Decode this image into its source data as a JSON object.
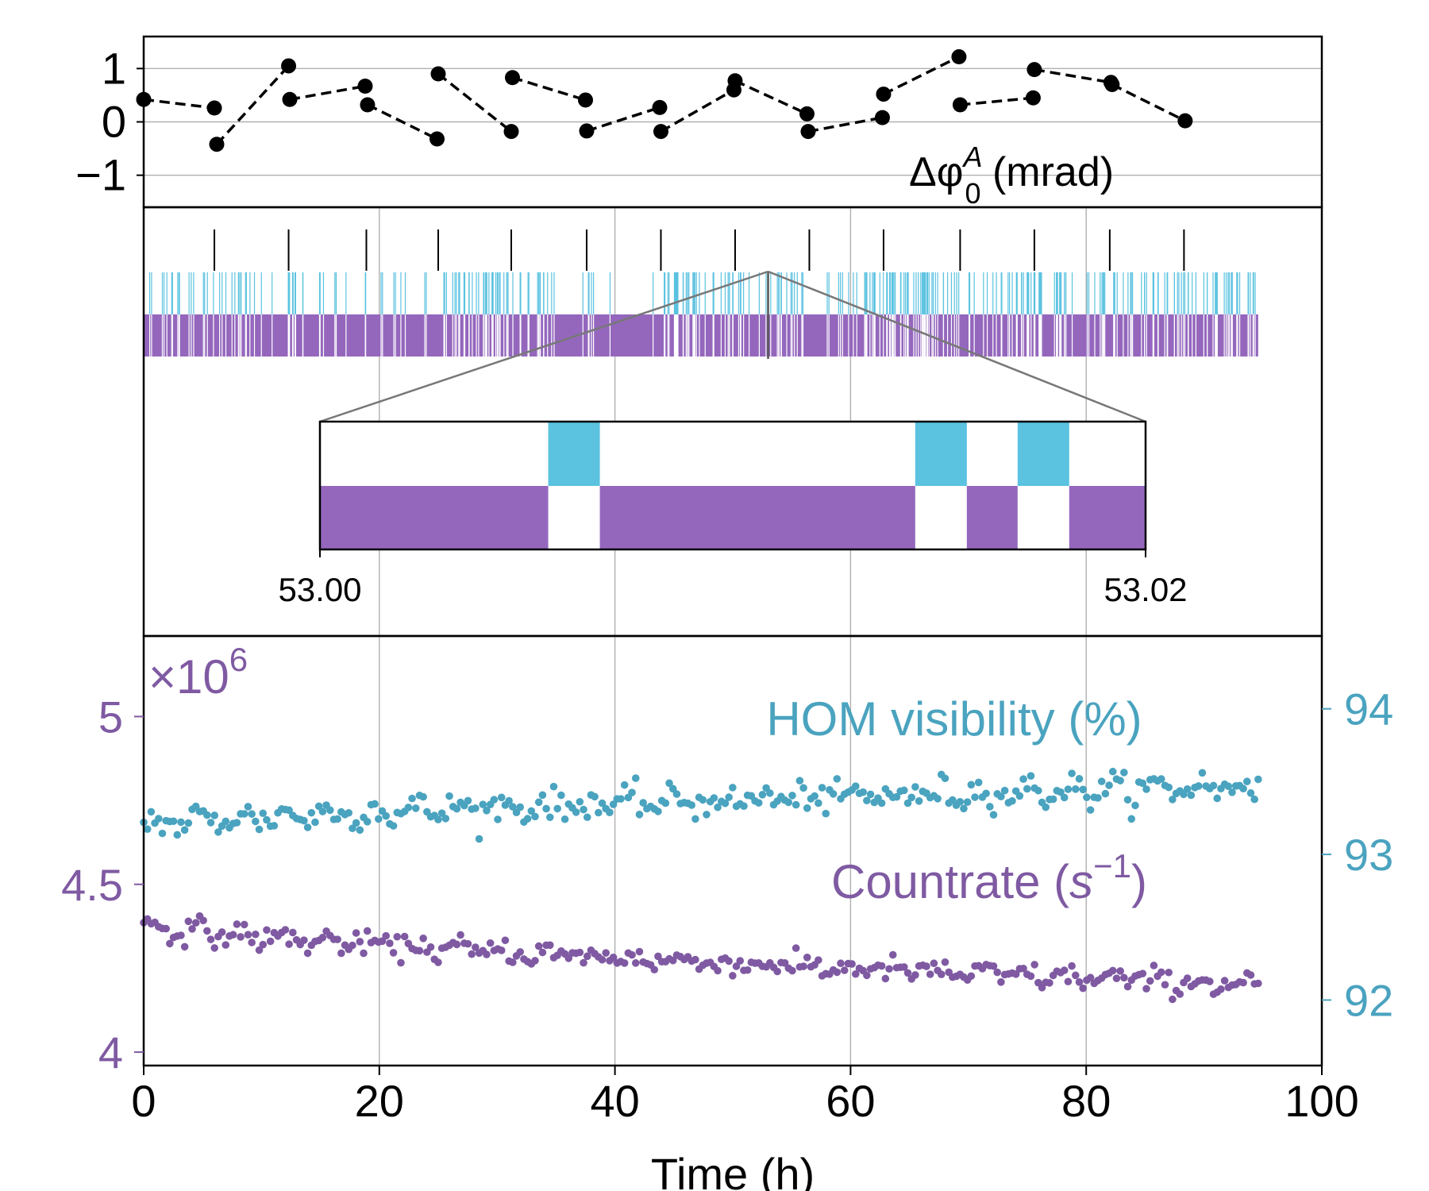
{
  "colors": {
    "purple": "#9467bd",
    "cyan": "#5bc2e0",
    "teal": "#4aa3bf",
    "purple_text": "#7f5aa2",
    "black": "#000000",
    "grid": "#b0b0b0"
  },
  "chart_data": [
    {
      "id": "phase-drift",
      "type": "line",
      "label": "Δφ",
      "label_sub": "0",
      "label_sup": "A",
      "label_unit": " (mrad)",
      "ylim": [
        -1.6,
        1.6
      ],
      "yticks": [
        1,
        0,
        -1
      ],
      "ytick_labels": [
        "1",
        "0",
        "−1"
      ],
      "xlim": [
        0,
        100
      ],
      "segments": [
        [
          [
            0,
            0.42
          ],
          [
            6,
            0.26
          ]
        ],
        [
          [
            6.2,
            -0.42
          ],
          [
            12.3,
            1.05
          ]
        ],
        [
          [
            12.4,
            0.42
          ],
          [
            18.8,
            0.67
          ]
        ],
        [
          [
            19,
            0.32
          ],
          [
            24.9,
            -0.32
          ]
        ],
        [
          [
            25,
            0.9
          ],
          [
            31.2,
            -0.18
          ]
        ],
        [
          [
            31.3,
            0.83
          ],
          [
            37.5,
            0.41
          ]
        ],
        [
          [
            37.6,
            -0.17
          ],
          [
            43.8,
            0.27
          ]
        ],
        [
          [
            43.9,
            -0.18
          ],
          [
            50.1,
            0.6
          ]
        ],
        [
          [
            50.2,
            0.77
          ],
          [
            56.3,
            0.15
          ]
        ],
        [
          [
            56.4,
            -0.18
          ],
          [
            62.7,
            0.08
          ]
        ],
        [
          [
            62.8,
            0.52
          ],
          [
            69.2,
            1.22
          ]
        ],
        [
          [
            69.3,
            0.32
          ],
          [
            75.5,
            0.45
          ]
        ],
        [
          [
            75.6,
            0.98
          ],
          [
            82.1,
            0.74
          ]
        ],
        [
          [
            82.2,
            0.7
          ],
          [
            88.4,
            0.02
          ]
        ]
      ]
    },
    {
      "id": "uptime-timeline",
      "type": "event-raster",
      "xlim": [
        0,
        100
      ],
      "markers": [
        6,
        12.3,
        18.9,
        25,
        31.2,
        37.6,
        43.9,
        50.2,
        56.5,
        62.8,
        69.3,
        75.6,
        82,
        88.3
      ],
      "selected_time": 53,
      "bar_extent": [
        0,
        94.6
      ],
      "inset": {
        "xlim": [
          53.0,
          53.02
        ],
        "tick_labels": [
          "53.00",
          "53.02"
        ],
        "cyan_intervals": [
          [
            53.00553,
            53.00678
          ],
          [
            53.01442,
            53.01567
          ],
          [
            53.0169,
            53.01815
          ]
        ],
        "purple_gaps": [
          [
            53.00553,
            53.00678
          ],
          [
            53.01442,
            53.01567
          ],
          [
            53.0169,
            53.01815
          ]
        ]
      }
    },
    {
      "id": "countrate-visibility",
      "type": "scatter",
      "xlabel": "Time (h)",
      "xlim": [
        0,
        100
      ],
      "xticks": [
        0,
        20,
        40,
        60,
        80,
        100
      ],
      "left_axis": {
        "ylim": [
          3.96,
          5.24
        ],
        "ticks": [
          5,
          4.5,
          4
        ],
        "tick_labels": [
          "5",
          "4.5",
          "4"
        ],
        "multiplier": "×10",
        "multiplier_exp": "6"
      },
      "right_axis": {
        "ylim": [
          91.55,
          94.5
        ],
        "ticks": [
          94,
          93,
          92
        ],
        "tick_labels": [
          "94",
          "93",
          "92"
        ]
      },
      "series": [
        {
          "name": "HOM visibility (%)",
          "axis": "right",
          "color": "#4aa3bf",
          "start": 93.2,
          "end": 93.47,
          "noise": 0.085,
          "n": 300,
          "x_end": 94.6
        },
        {
          "name": "Countrate",
          "name_sym": "s",
          "name_exp": "−1",
          "axis": "left",
          "color": "#7f5aa2",
          "start": 4.38,
          "end": 4.2,
          "noise": 0.028,
          "n": 300,
          "x_end": 94.6
        }
      ]
    }
  ]
}
